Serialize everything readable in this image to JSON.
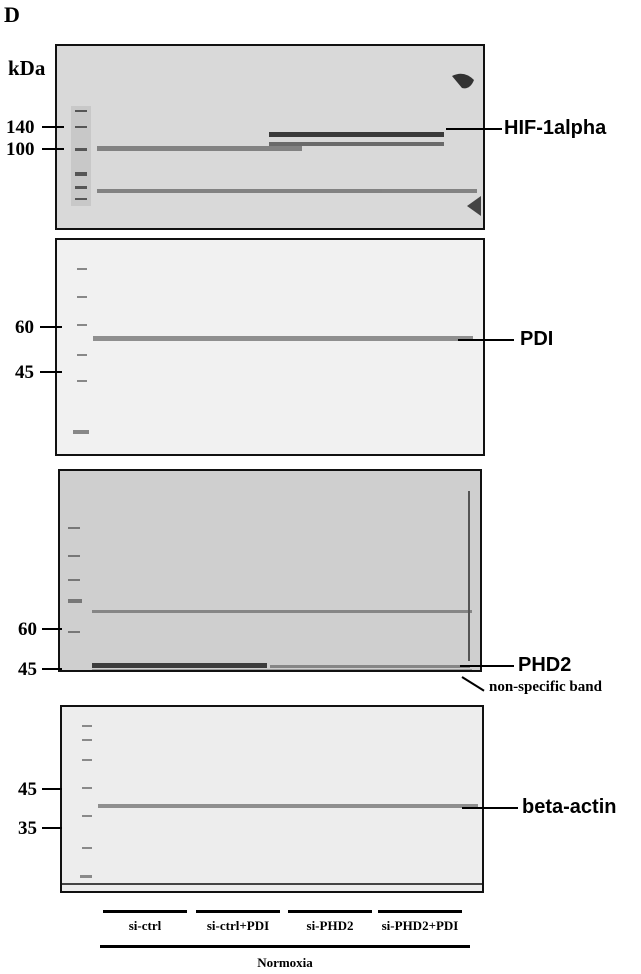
{
  "figure": {
    "panel_letter": "D",
    "unit_label": "kDa",
    "blots": [
      {
        "name": "HIF-1alpha",
        "markers": [
          "140",
          "100"
        ],
        "band_labels": [
          "HIF-1alpha"
        ]
      },
      {
        "name": "PDI",
        "markers": [
          "60",
          "45"
        ],
        "band_labels": [
          "PDI"
        ]
      },
      {
        "name": "PHD2",
        "markers": [
          "60",
          "45"
        ],
        "band_labels": [
          "PHD2",
          "non-specific band"
        ]
      },
      {
        "name": "beta-actin",
        "markers": [
          "45",
          "35"
        ],
        "band_labels": [
          "beta-actin"
        ]
      }
    ],
    "groups": [
      "si-ctrl",
      "si-ctrl+PDI",
      "si-PHD2",
      "si-PHD2+PDI"
    ],
    "condition": "Normoxia",
    "colors": {
      "background": "#ffffff",
      "blot1": "#d9d9d9",
      "blot2": "#f1f1f1",
      "blot3": "#cfcfcf",
      "blot4": "#ededed",
      "band": "#555555"
    }
  }
}
